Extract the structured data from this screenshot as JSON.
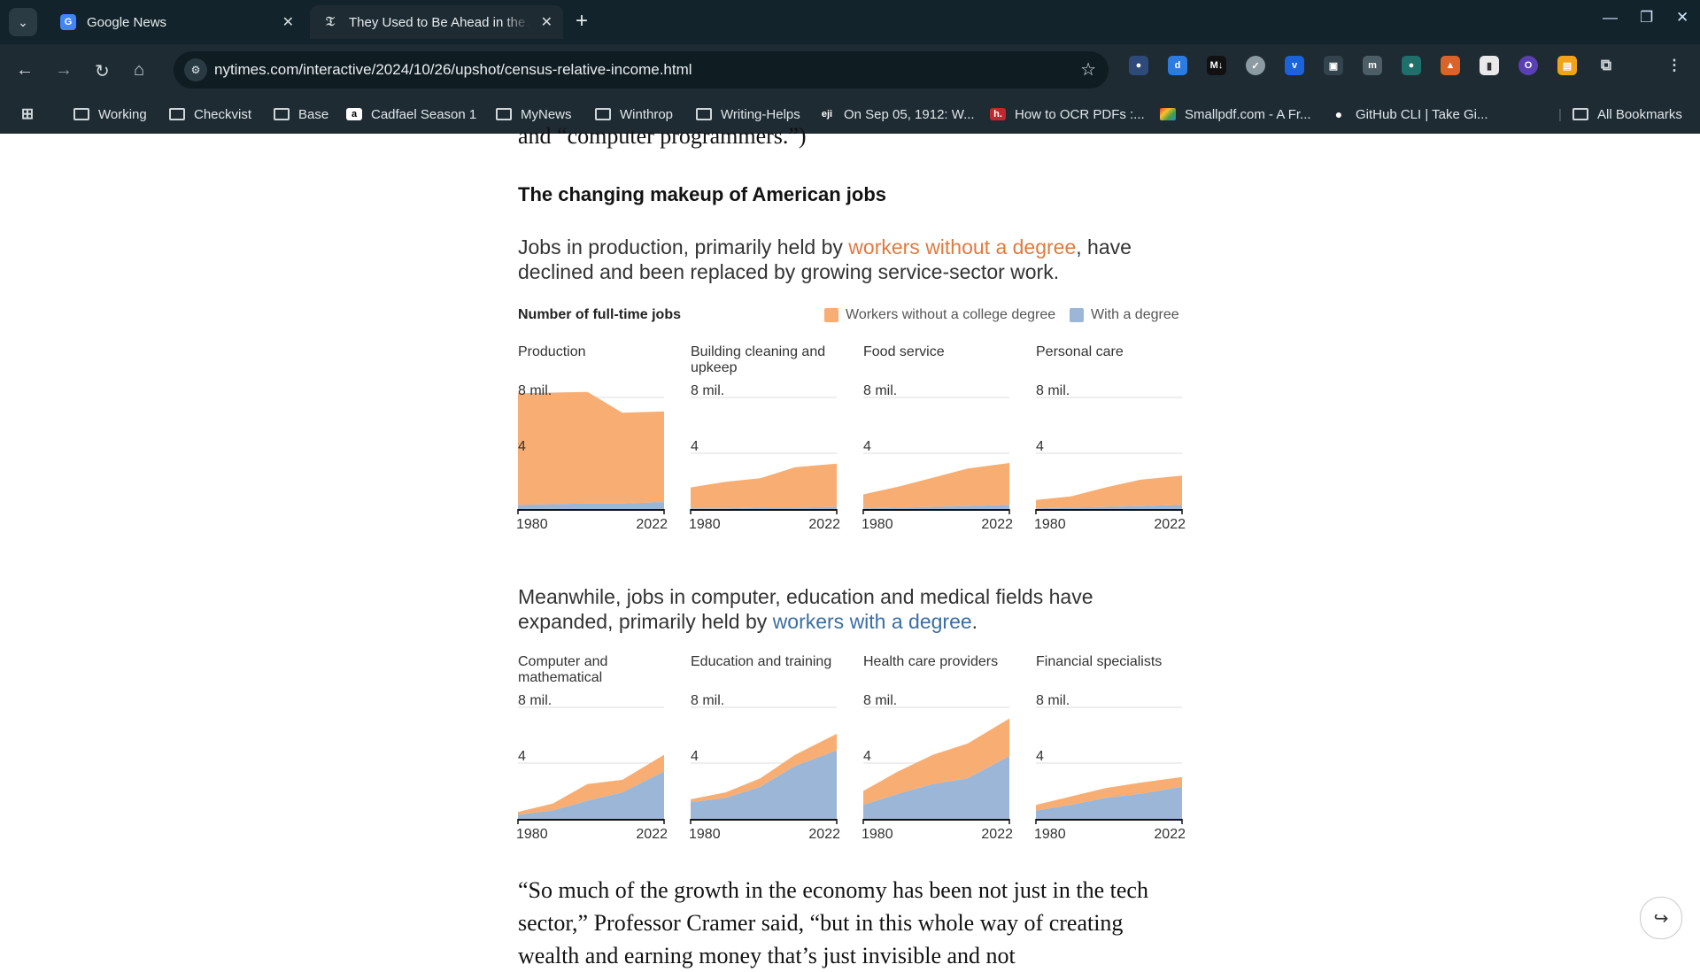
{
  "browser": {
    "tabs": [
      {
        "title": "Google News",
        "favicon": "google-news-icon"
      },
      {
        "title": "They Used to Be Ahead in the Am",
        "favicon": "nyt-icon"
      }
    ],
    "url": "nytimes.com/interactive/2024/10/26/upshot/census-relative-income.html",
    "bookmarks": [
      {
        "label": "Working",
        "icon": "folder-icon"
      },
      {
        "label": "Checkvist",
        "icon": "folder-icon"
      },
      {
        "label": "Base",
        "icon": "folder-icon"
      },
      {
        "label": "Cadfael Season 1",
        "icon": "amazon-icon"
      },
      {
        "label": "MyNews",
        "icon": "folder-icon"
      },
      {
        "label": "Winthrop",
        "icon": "folder-icon"
      },
      {
        "label": "Writing-Helps",
        "icon": "folder-icon"
      },
      {
        "label": "On Sep 05, 1912: W...",
        "icon": "eji-icon"
      },
      {
        "label": "How to OCR PDFs :...",
        "icon": "h-icon"
      },
      {
        "label": "Smallpdf.com - A Fr...",
        "icon": "smallpdf-icon"
      },
      {
        "label": "GitHub CLI | Take Gi...",
        "icon": "github-icon"
      }
    ],
    "all_bookmarks": "All Bookmarks"
  },
  "article": {
    "cut_top_text": "and “computer programmers.”)",
    "section_heading": "The changing makeup of American jobs",
    "para1": {
      "pre": "Jobs in production, primarily held by ",
      "link": "workers without a degree",
      "post": ", have declined and been replaced by growing service-sector work."
    },
    "para2": {
      "pre": "Meanwhile, jobs in computer, education and medical fields have expanded, primarily held by ",
      "link": "workers with a degree",
      "post": "."
    },
    "quote": "“So much of the growth in the economy has been not just in the tech sector,” Professor Cramer said, “but in this whole way of creating wealth and earning money that’s just invisible and not"
  },
  "legend": {
    "title": "Number of full-time jobs",
    "no_degree": "Workers without a college degree",
    "degree": "With a degree",
    "colors": {
      "no_degree": "#f8ae73",
      "degree": "#9bb6d6"
    }
  },
  "chart_data": [
    {
      "type": "area",
      "title": "Production",
      "x": [
        1980,
        1990,
        2000,
        2010,
        2022
      ],
      "ylim": [
        0,
        8
      ],
      "y_ticks": [
        "8 mil.",
        "4"
      ],
      "x_labels": [
        "1980",
        "2022"
      ],
      "series": [
        {
          "name": "With a degree",
          "values": [
            0.3,
            0.35,
            0.4,
            0.4,
            0.5
          ]
        },
        {
          "name": "Workers without a college degree",
          "values": [
            8.0,
            8.0,
            8.0,
            6.5,
            6.5
          ]
        }
      ]
    },
    {
      "type": "area",
      "title": "Building cleaning and upkeep",
      "x": [
        1980,
        1990,
        2000,
        2010,
        2022
      ],
      "ylim": [
        0,
        8
      ],
      "y_ticks": [
        "8 mil.",
        "4"
      ],
      "x_labels": [
        "1980",
        "2022"
      ],
      "series": [
        {
          "name": "With a degree",
          "values": [
            0.05,
            0.05,
            0.1,
            0.1,
            0.15
          ]
        },
        {
          "name": "Workers without a college degree",
          "values": [
            1.5,
            1.9,
            2.1,
            2.9,
            3.1
          ]
        }
      ]
    },
    {
      "type": "area",
      "title": "Food service",
      "x": [
        1980,
        1990,
        2000,
        2010,
        2022
      ],
      "ylim": [
        0,
        8
      ],
      "y_ticks": [
        "8 mil.",
        "4"
      ],
      "x_labels": [
        "1980",
        "2022"
      ],
      "series": [
        {
          "name": "With a degree",
          "values": [
            0.05,
            0.1,
            0.15,
            0.2,
            0.3
          ]
        },
        {
          "name": "Workers without a college degree",
          "values": [
            1.0,
            1.5,
            2.1,
            2.7,
            3.0
          ]
        }
      ]
    },
    {
      "type": "area",
      "title": "Personal care",
      "x": [
        1980,
        1990,
        2000,
        2010,
        2022
      ],
      "ylim": [
        0,
        8
      ],
      "y_ticks": [
        "8 mil.",
        "4"
      ],
      "x_labels": [
        "1980",
        "2022"
      ],
      "series": [
        {
          "name": "With a degree",
          "values": [
            0.05,
            0.1,
            0.15,
            0.2,
            0.3
          ]
        },
        {
          "name": "Workers without a college degree",
          "values": [
            0.6,
            0.8,
            1.4,
            1.9,
            2.1
          ]
        }
      ]
    },
    {
      "type": "area",
      "title": "Computer and mathematical",
      "x": [
        1980,
        1990,
        2000,
        2010,
        2022
      ],
      "ylim": [
        0,
        8
      ],
      "y_ticks": [
        "8 mil.",
        "4"
      ],
      "x_labels": [
        "1980",
        "2022"
      ],
      "series": [
        {
          "name": "With a degree",
          "values": [
            0.3,
            0.6,
            1.3,
            1.9,
            3.4
          ]
        },
        {
          "name": "Workers without a college degree",
          "values": [
            0.2,
            0.5,
            1.2,
            0.9,
            1.2
          ]
        }
      ]
    },
    {
      "type": "area",
      "title": "Education and training",
      "x": [
        1980,
        1990,
        2000,
        2010,
        2022
      ],
      "ylim": [
        0,
        8
      ],
      "y_ticks": [
        "8 mil.",
        "4"
      ],
      "x_labels": [
        "1980",
        "2022"
      ],
      "series": [
        {
          "name": "With a degree",
          "values": [
            1.2,
            1.5,
            2.3,
            3.8,
            4.9
          ]
        },
        {
          "name": "Workers without a college degree",
          "values": [
            0.2,
            0.4,
            0.6,
            0.8,
            1.2
          ]
        }
      ]
    },
    {
      "type": "area",
      "title": "Health care providers",
      "x": [
        1980,
        1990,
        2000,
        2010,
        2022
      ],
      "ylim": [
        0,
        8
      ],
      "y_ticks": [
        "8 mil.",
        "4"
      ],
      "x_labels": [
        "1980",
        "2022"
      ],
      "series": [
        {
          "name": "With a degree",
          "values": [
            1.0,
            1.8,
            2.5,
            2.9,
            4.5
          ]
        },
        {
          "name": "Workers without a college degree",
          "values": [
            1.0,
            1.6,
            2.1,
            2.5,
            2.7
          ]
        }
      ]
    },
    {
      "type": "area",
      "title": "Financial specialists",
      "x": [
        1980,
        1990,
        2000,
        2010,
        2022
      ],
      "ylim": [
        0,
        8
      ],
      "y_ticks": [
        "8 mil.",
        "4"
      ],
      "x_labels": [
        "1980",
        "2022"
      ],
      "series": [
        {
          "name": "With a degree",
          "values": [
            0.6,
            1.0,
            1.5,
            1.8,
            2.3
          ]
        },
        {
          "name": "Workers without a college degree",
          "values": [
            0.4,
            0.6,
            0.7,
            0.8,
            0.7
          ]
        }
      ]
    }
  ]
}
